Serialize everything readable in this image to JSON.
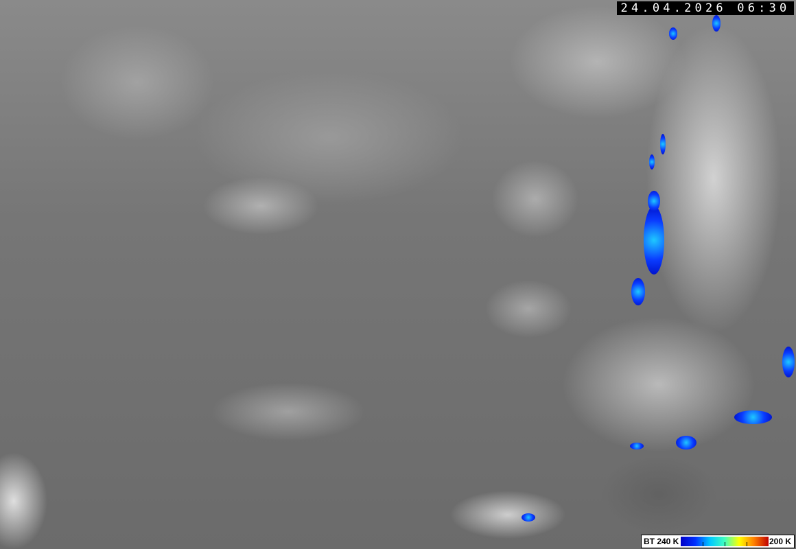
{
  "timestamp": "24.04.2026 06:30",
  "legend": {
    "low_label": "BT 240 K",
    "high_label": "200 K",
    "colors": [
      "#0000c8",
      "#0030ff",
      "#00c8ff",
      "#40ffc0",
      "#ffff00",
      "#ff8000",
      "#c00000"
    ]
  }
}
